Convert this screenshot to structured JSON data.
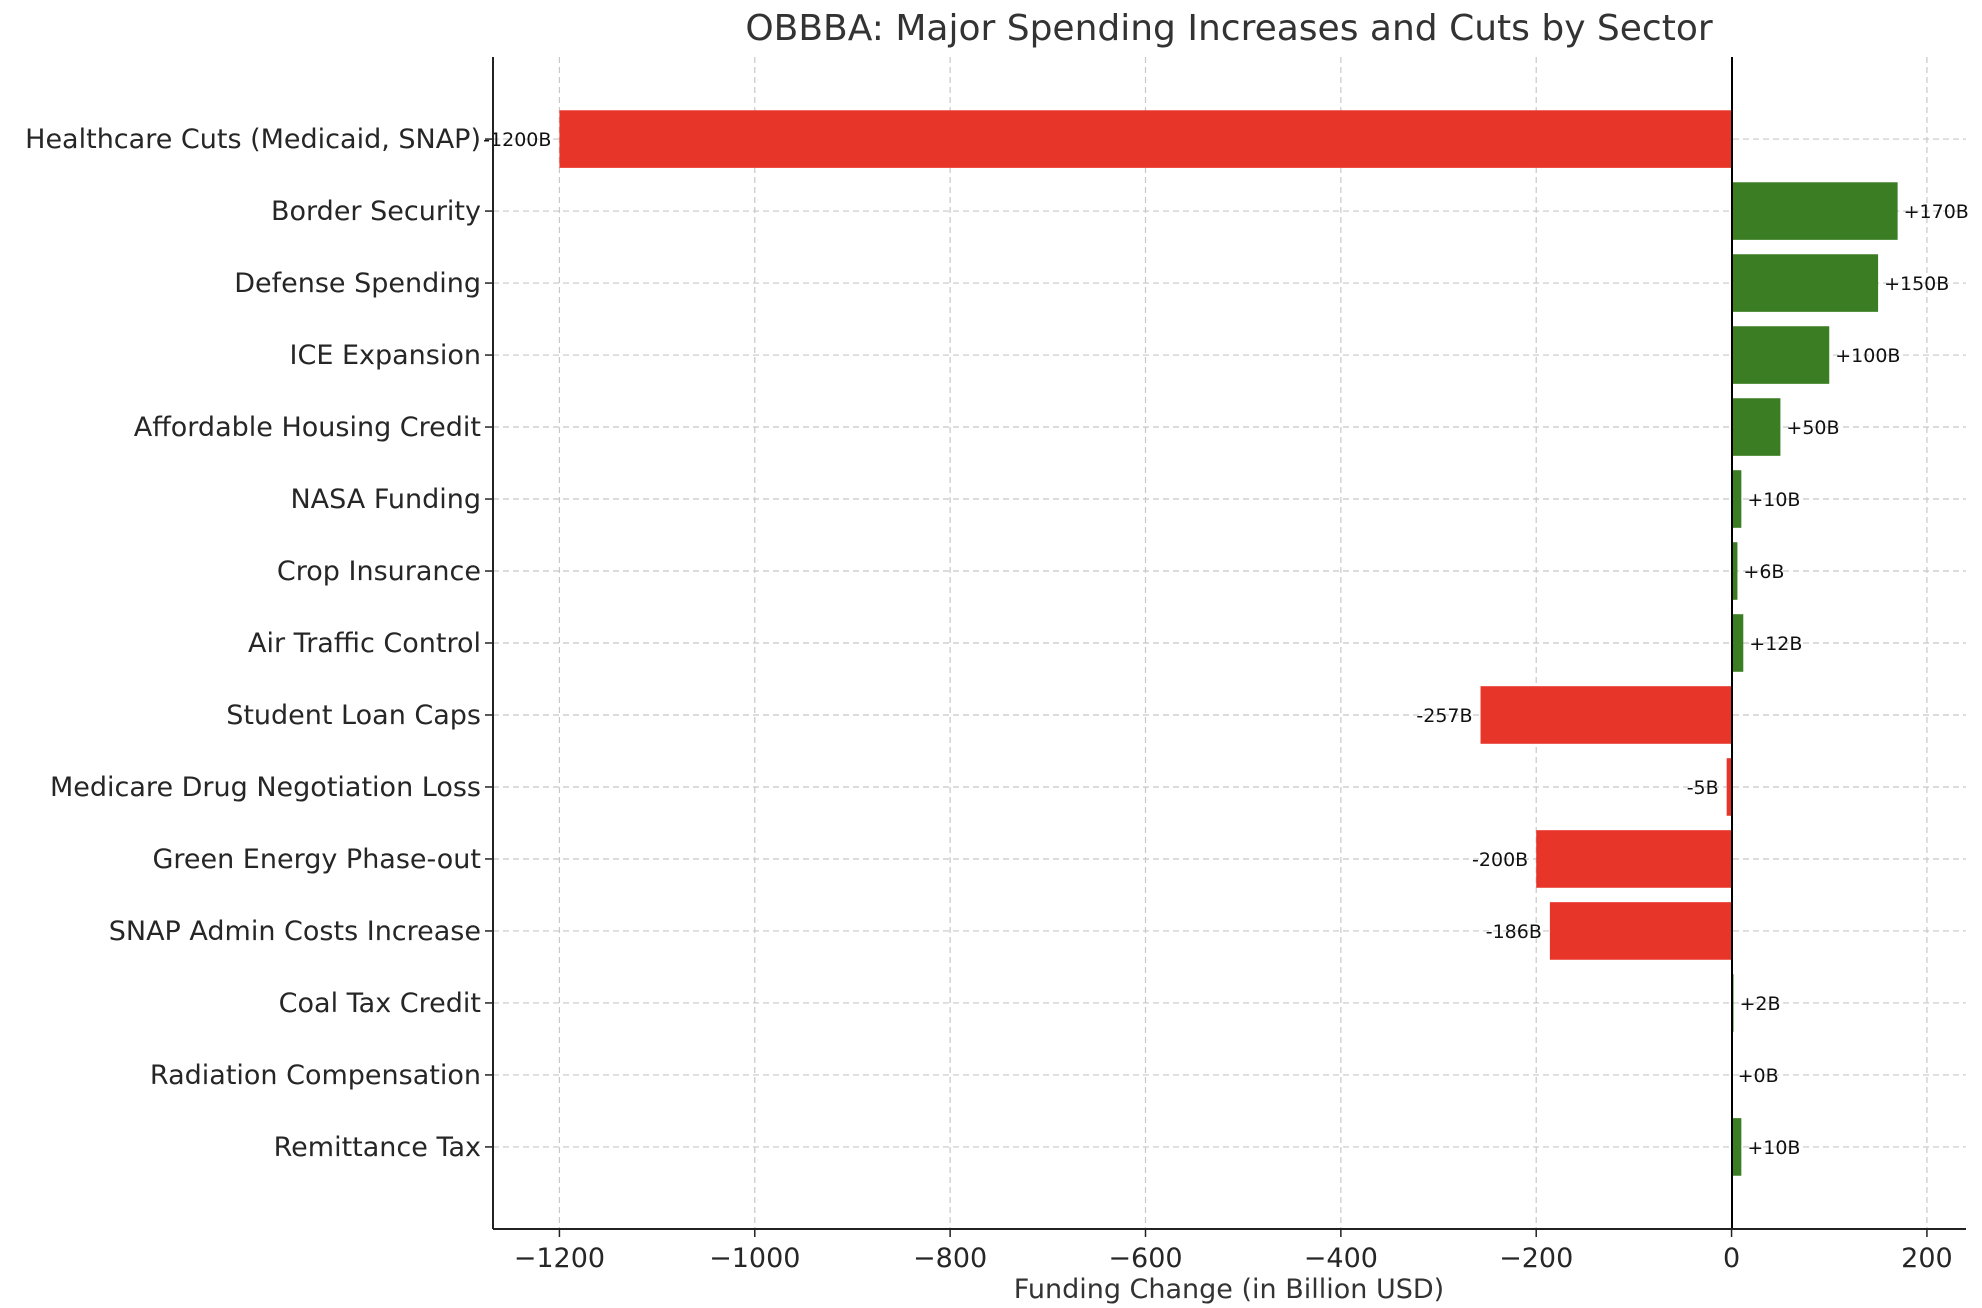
{
  "chart_data": {
    "type": "bar",
    "orientation": "horizontal",
    "title": "OBBBA: Major Spending Increases and Cuts by Sector",
    "xlabel": "Funding Change (in Billion USD)",
    "ylabel": "",
    "xlim": [
      -1268,
      240
    ],
    "grid": true,
    "categories": [
      "Healthcare Cuts (Medicaid, SNAP)",
      "Border Security",
      "Defense Spending",
      "ICE Expansion",
      "Affordable Housing Credit",
      "NASA Funding",
      "Crop Insurance",
      "Air Traffic Control",
      "Student Loan Caps",
      "Medicare Drug Negotiation Loss",
      "Green Energy Phase-out",
      "SNAP Admin Costs Increase",
      "Coal Tax Credit",
      "Radiation Compensation",
      "Remittance Tax"
    ],
    "values": [
      -1200,
      170,
      150,
      100,
      50,
      10,
      6,
      12,
      -257,
      -5,
      -200,
      -186,
      2,
      0,
      10
    ],
    "value_labels": [
      "-1200B",
      "+170B",
      "+150B",
      "+100B",
      "+50B",
      "+10B",
      "+6B",
      "+12B",
      "-257B",
      "-5B",
      "-200B",
      "-186B",
      "+2B",
      "+0B",
      "+10B"
    ],
    "x_ticks": [
      -1200,
      -1000,
      -800,
      -600,
      -400,
      -200,
      0,
      200
    ],
    "x_tick_labels": [
      "−1200",
      "−1000",
      "−800",
      "−600",
      "−400",
      "−200",
      "0",
      "200"
    ],
    "colors": {
      "positive": "#3a7d22",
      "negative": "#e8352a"
    }
  }
}
